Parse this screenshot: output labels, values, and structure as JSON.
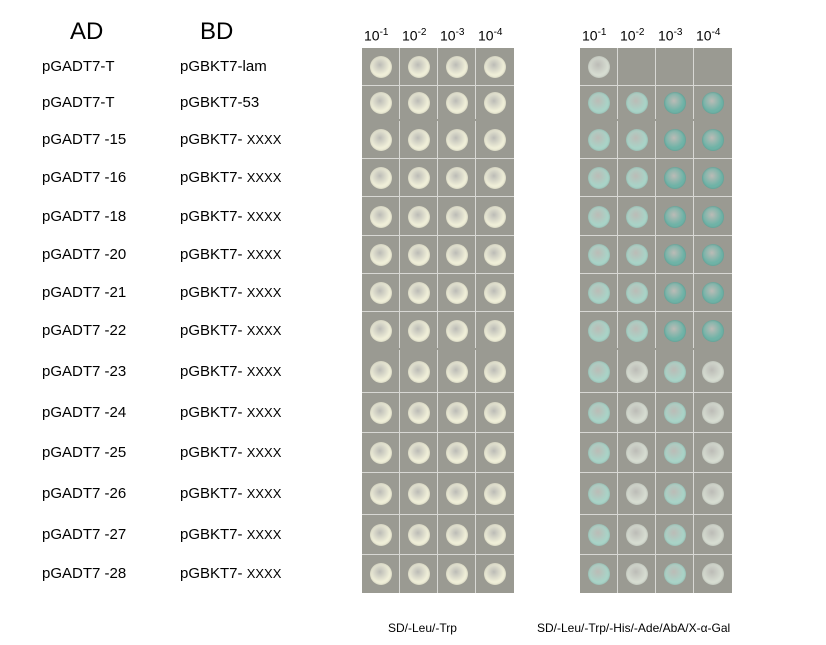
{
  "headers": {
    "ad": "AD",
    "bd": "BD"
  },
  "dilutions": [
    {
      "base": "10",
      "exp": "-1"
    },
    {
      "base": "10",
      "exp": "-2"
    },
    {
      "base": "10",
      "exp": "-3"
    },
    {
      "base": "10",
      "exp": "-4"
    }
  ],
  "rows": [
    {
      "ad": "pGADT7-T",
      "bd": "pGBKT7-lam",
      "bd_suffix": ""
    },
    {
      "ad": "pGADT7-T",
      "bd": "pGBKT7-53",
      "bd_suffix": ""
    },
    {
      "ad": "pGADT7 -15",
      "bd": "pGBKT7- ",
      "bd_suffix": "XXXX"
    },
    {
      "ad": "pGADT7 -16",
      "bd": "pGBKT7- ",
      "bd_suffix": "XXXX"
    },
    {
      "ad": "pGADT7 -18",
      "bd": "pGBKT7- ",
      "bd_suffix": "XXXX"
    },
    {
      "ad": "pGADT7 -20",
      "bd": "pGBKT7- ",
      "bd_suffix": "XXXX"
    },
    {
      "ad": "pGADT7 -21",
      "bd": "pGBKT7- ",
      "bd_suffix": "XXXX"
    },
    {
      "ad": "pGADT7 -22",
      "bd": "pGBKT7- ",
      "bd_suffix": "XXXX"
    },
    {
      "ad": "pGADT7 -23",
      "bd": "pGBKT7- ",
      "bd_suffix": "XXXX"
    },
    {
      "ad": "pGADT7 -24",
      "bd": "pGBKT7- ",
      "bd_suffix": "XXXX"
    },
    {
      "ad": "pGADT7 -25",
      "bd": "pGBKT7- ",
      "bd_suffix": "XXXX"
    },
    {
      "ad": "pGADT7 -26",
      "bd": "pGBKT7- ",
      "bd_suffix": "XXXX"
    },
    {
      "ad": "pGADT7 -27",
      "bd": "pGBKT7- ",
      "bd_suffix": "XXXX"
    },
    {
      "ad": "pGADT7 -28",
      "bd": "pGBKT7- ",
      "bd_suffix": "XXXX"
    }
  ],
  "growth_sd": [
    [
      1,
      1,
      1,
      1
    ],
    [
      1,
      1,
      1,
      1
    ],
    [
      1,
      1,
      1,
      1
    ],
    [
      1,
      1,
      1,
      1
    ],
    [
      1,
      1,
      1,
      1
    ],
    [
      1,
      1,
      1,
      1
    ],
    [
      1,
      1,
      1,
      1
    ],
    [
      1,
      1,
      1,
      1
    ],
    [
      1,
      1,
      1,
      1
    ],
    [
      1,
      1,
      1,
      1
    ],
    [
      1,
      1,
      1,
      1
    ],
    [
      1,
      1,
      1,
      1
    ],
    [
      1,
      1,
      1,
      1
    ],
    [
      1,
      1,
      1,
      1
    ]
  ],
  "growth_qdo": [
    [
      1,
      0,
      0,
      0
    ],
    [
      1,
      1,
      1,
      1
    ],
    [
      1,
      1,
      1,
      1
    ],
    [
      1,
      1,
      1,
      1
    ],
    [
      1,
      1,
      1,
      1
    ],
    [
      1,
      1,
      1,
      1
    ],
    [
      1,
      1,
      1,
      1
    ],
    [
      1,
      1,
      1,
      1
    ],
    [
      1,
      1,
      1,
      1
    ],
    [
      1,
      1,
      1,
      1
    ],
    [
      1,
      1,
      1,
      1
    ],
    [
      1,
      1,
      1,
      1
    ],
    [
      1,
      1,
      1,
      1
    ],
    [
      1,
      1,
      1,
      1
    ]
  ],
  "captions": {
    "sd": "SD/-Leu/-Trp",
    "qdo": "SD/-Leu/-Trp/-His/-Ade/AbA/X-α-Gal"
  },
  "colors": {
    "plate_bg": "#9a9a92",
    "grid_line": "#d8d8d4",
    "yeast_white": "#efeed8",
    "yeast_blue": "#a9d3c7",
    "yeast_blue_dark": "#6fb3a7",
    "yeast_pale": "#d6dcd1"
  }
}
